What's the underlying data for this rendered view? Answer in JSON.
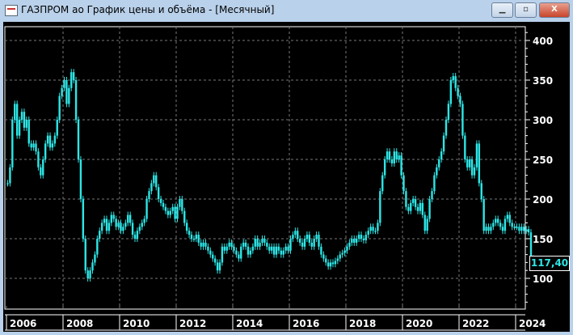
{
  "window": {
    "title": "ГАЗПРОМ ао График цены и объёма - [Месячный]",
    "minimize_icon": "minimize-icon",
    "maximize_icon": "maximize-icon",
    "close_icon": "close-icon"
  },
  "current_price": "117,40",
  "colors": {
    "background": "#000000",
    "candles": "#2ee6e6",
    "axis": "#ffffff",
    "grid": "#777777"
  },
  "chart_data": {
    "type": "candlestick",
    "title": "",
    "interval": "monthly",
    "start": "2006-01",
    "ylim": [
      60,
      420
    ],
    "yticks": [
      100,
      150,
      200,
      250,
      300,
      350,
      400
    ],
    "xticks": [
      "2006",
      "2008",
      "2010",
      "2012",
      "2014",
      "2016",
      "2018",
      "2020",
      "2022",
      "2024"
    ],
    "grid": true,
    "closes": {
      "2006": [
        220,
        240,
        300,
        320,
        280,
        300,
        310,
        290,
        300,
        270,
        265,
        270
      ],
      "2007": [
        260,
        240,
        230,
        250,
        270,
        280,
        265,
        270,
        280,
        300,
        330,
        340
      ],
      "2008": [
        350,
        320,
        340,
        360,
        350,
        300,
        250,
        200,
        150,
        110,
        100,
        110
      ],
      "2009": [
        120,
        130,
        150,
        160,
        170,
        175,
        160,
        170,
        180,
        175,
        165,
        170
      ],
      "2010": [
        160,
        165,
        170,
        180,
        170,
        155,
        150,
        160,
        165,
        170,
        175,
        200
      ],
      "2011": [
        210,
        220,
        230,
        215,
        200,
        195,
        190,
        185,
        180,
        185,
        190,
        175
      ],
      "2012": [
        190,
        200,
        185,
        170,
        160,
        155,
        150,
        150,
        155,
        145,
        140,
        145
      ],
      "2013": [
        140,
        135,
        130,
        125,
        120,
        110,
        120,
        140,
        135,
        140,
        145,
        140
      ],
      "2014": [
        135,
        130,
        125,
        140,
        145,
        140,
        130,
        135,
        140,
        150,
        140,
        145
      ],
      "2015": [
        150,
        145,
        140,
        135,
        140,
        130,
        140,
        135,
        130,
        135,
        140,
        135
      ],
      "2016": [
        150,
        155,
        160,
        150,
        145,
        140,
        150,
        155,
        145,
        140,
        150,
        155
      ],
      "2017": [
        140,
        130,
        125,
        120,
        115,
        120,
        118,
        122,
        125,
        130,
        132,
        135
      ],
      "2018": [
        140,
        145,
        150,
        145,
        150,
        155,
        150,
        148,
        155,
        160,
        165,
        160
      ],
      "2019": [
        160,
        170,
        210,
        230,
        250,
        260,
        250,
        245,
        260,
        250,
        255,
        230
      ],
      "2020": [
        210,
        190,
        185,
        195,
        200,
        190,
        185,
        195,
        180,
        160,
        175,
        200
      ],
      "2021": [
        210,
        230,
        240,
        250,
        260,
        280,
        300,
        320,
        350,
        355,
        340,
        330
      ],
      "2022": [
        320,
        280,
        250,
        240,
        250,
        230,
        240,
        270,
        220,
        200,
        160,
        165
      ],
      "2023": [
        160,
        165,
        170,
        175,
        170,
        165,
        160,
        175,
        180,
        170,
        165,
        165
      ],
      "2024": [
        165,
        160,
        165,
        160,
        162,
        158,
        125,
        117.4
      ]
    },
    "last": 117.4
  }
}
